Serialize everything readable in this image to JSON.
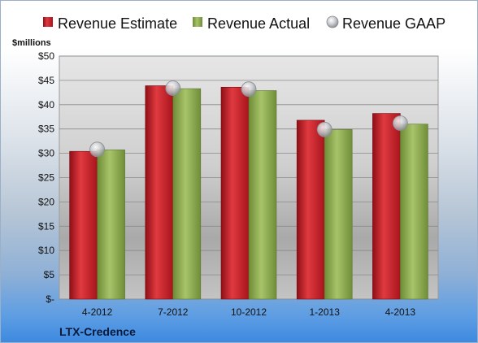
{
  "company": "LTX-Credence",
  "colors": {
    "estimate": "#c8202a",
    "actual": "#8aaa4c",
    "gaap": "#b9bcc2"
  },
  "chart_data": {
    "type": "bar",
    "unit_label": "$millions",
    "categories": [
      "4-2012",
      "7-2012",
      "10-2012",
      "1-2013",
      "4-2013"
    ],
    "series": [
      {
        "name": "Revenue Estimate",
        "kind": "bar",
        "values": [
          30.4,
          43.9,
          43.6,
          36.8,
          38.2
        ]
      },
      {
        "name": "Revenue Actual",
        "kind": "bar",
        "values": [
          30.7,
          43.3,
          42.9,
          34.9,
          36.0
        ]
      },
      {
        "name": "Revenue GAAP",
        "kind": "marker",
        "values": [
          30.8,
          43.4,
          43.2,
          34.9,
          36.2
        ]
      }
    ],
    "ylim": [
      0,
      50
    ],
    "yticks": [
      "$-",
      "$5",
      "$10",
      "$15",
      "$20",
      "$25",
      "$30",
      "$35",
      "$40",
      "$45",
      "$50"
    ],
    "legend_position": "top",
    "grid": true
  }
}
